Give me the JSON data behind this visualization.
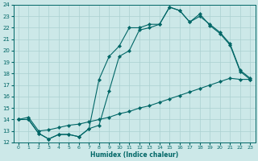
{
  "xlabel": "Humidex (Indice chaleur)",
  "ylabel": "",
  "bg_color": "#cce8e8",
  "line_color": "#006666",
  "grid_color": "#aad0d0",
  "xlim": [
    -0.5,
    23.5
  ],
  "ylim": [
    12,
    24
  ],
  "yticks": [
    12,
    13,
    14,
    15,
    16,
    17,
    18,
    19,
    20,
    21,
    22,
    23,
    24
  ],
  "xticks": [
    0,
    1,
    2,
    3,
    4,
    5,
    6,
    7,
    8,
    9,
    10,
    11,
    12,
    13,
    14,
    15,
    16,
    17,
    18,
    19,
    20,
    21,
    22,
    23
  ],
  "curve1_x": [
    0,
    1,
    2,
    3,
    4,
    5,
    6,
    7,
    8,
    9,
    10,
    11,
    12,
    13,
    14,
    15,
    16,
    17,
    18,
    19,
    20,
    21,
    22,
    23
  ],
  "curve1_y": [
    14.0,
    14.0,
    12.8,
    12.3,
    12.7,
    12.7,
    12.5,
    13.2,
    17.5,
    19.5,
    20.4,
    22.0,
    22.0,
    22.3,
    22.3,
    23.8,
    23.5,
    22.5,
    23.2,
    22.2,
    21.5,
    20.5,
    18.2,
    17.5
  ],
  "curve2_x": [
    0,
    1,
    2,
    3,
    4,
    5,
    6,
    7,
    8,
    9,
    10,
    11,
    12,
    13,
    14,
    15,
    16,
    17,
    18,
    19,
    20,
    21,
    22,
    23
  ],
  "curve2_y": [
    14.0,
    14.0,
    12.8,
    12.3,
    12.7,
    12.7,
    12.5,
    13.2,
    13.5,
    16.5,
    19.5,
    20.0,
    21.8,
    22.0,
    22.3,
    23.8,
    23.5,
    22.5,
    23.0,
    22.3,
    21.6,
    20.6,
    18.3,
    17.6
  ],
  "curve3_x": [
    0,
    1,
    2,
    3,
    4,
    5,
    6,
    7,
    8,
    9,
    10,
    11,
    12,
    13,
    14,
    15,
    16,
    17,
    18,
    19,
    20,
    21,
    22,
    23
  ],
  "curve3_y": [
    14.0,
    14.2,
    13.0,
    13.1,
    13.3,
    13.5,
    13.6,
    13.8,
    14.0,
    14.2,
    14.5,
    14.7,
    15.0,
    15.2,
    15.5,
    15.8,
    16.1,
    16.4,
    16.7,
    17.0,
    17.3,
    17.6,
    17.5,
    17.5
  ]
}
